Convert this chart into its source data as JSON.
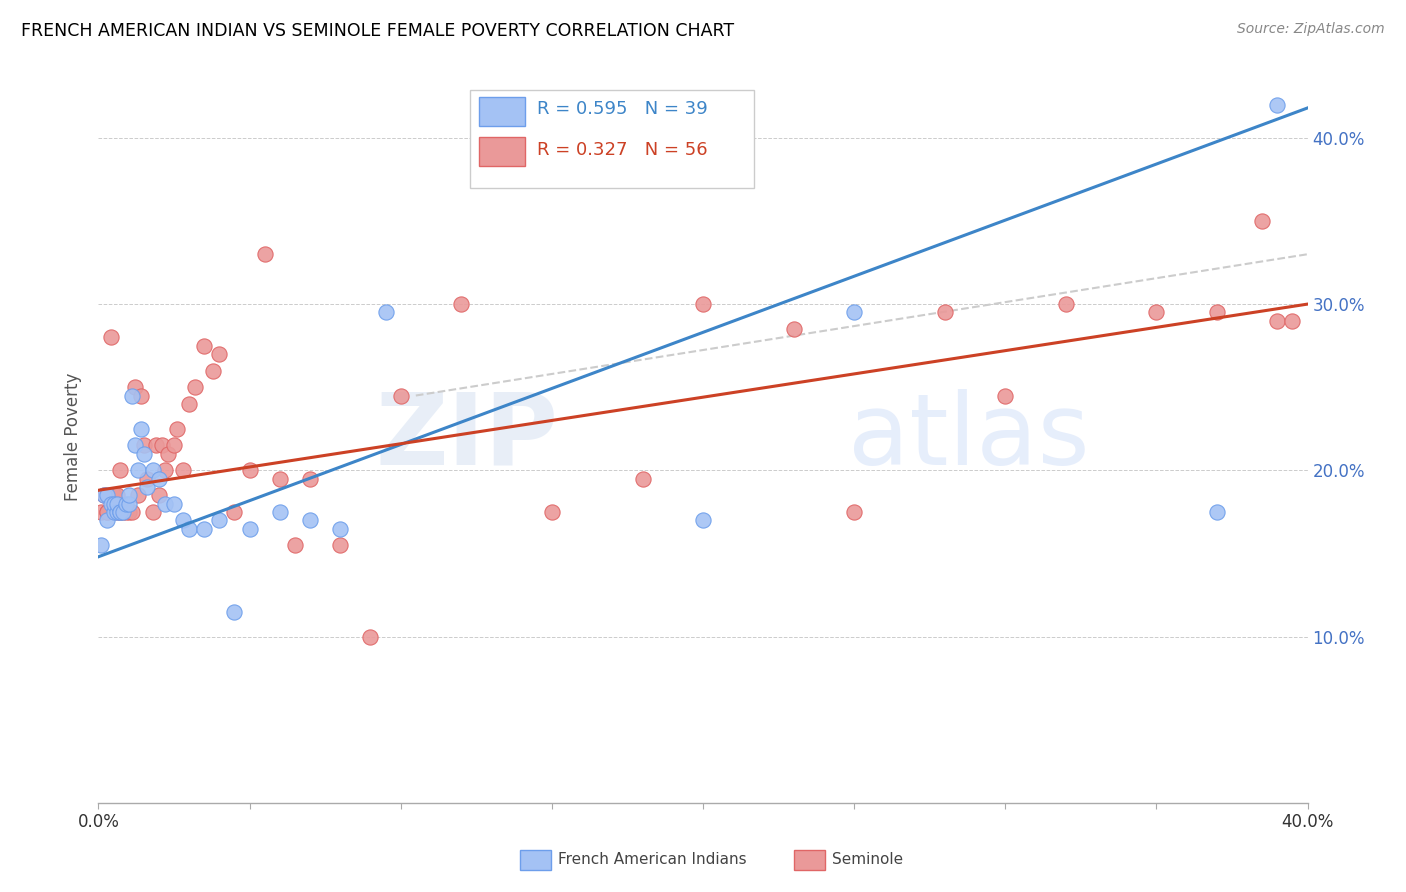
{
  "title": "FRENCH AMERICAN INDIAN VS SEMINOLE FEMALE POVERTY CORRELATION CHART",
  "source": "Source: ZipAtlas.com",
  "ylabel": "Female Poverty",
  "x_min": 0.0,
  "x_max": 0.4,
  "y_min": 0.0,
  "y_max": 0.44,
  "color_blue": "#a4c2f4",
  "color_blue_edge": "#6d9eeb",
  "color_pink": "#ea9999",
  "color_pink_edge": "#e06666",
  "color_line_blue": "#3d85c8",
  "color_line_pink": "#cc4125",
  "color_line_dashed": "#cccccc",
  "color_right_axis": "#4472c4",
  "color_grid": "#cccccc",
  "blue_points_x": [
    0.001,
    0.002,
    0.003,
    0.003,
    0.004,
    0.005,
    0.005,
    0.006,
    0.006,
    0.007,
    0.007,
    0.008,
    0.009,
    0.01,
    0.01,
    0.011,
    0.012,
    0.013,
    0.014,
    0.015,
    0.016,
    0.018,
    0.02,
    0.022,
    0.025,
    0.028,
    0.03,
    0.035,
    0.04,
    0.045,
    0.05,
    0.06,
    0.07,
    0.08,
    0.095,
    0.2,
    0.25,
    0.37,
    0.39
  ],
  "blue_points_y": [
    0.155,
    0.185,
    0.17,
    0.185,
    0.18,
    0.175,
    0.18,
    0.175,
    0.18,
    0.175,
    0.175,
    0.175,
    0.18,
    0.18,
    0.185,
    0.245,
    0.215,
    0.2,
    0.225,
    0.21,
    0.19,
    0.2,
    0.195,
    0.18,
    0.18,
    0.17,
    0.165,
    0.165,
    0.17,
    0.115,
    0.165,
    0.175,
    0.17,
    0.165,
    0.295,
    0.17,
    0.295,
    0.175,
    0.42
  ],
  "pink_points_x": [
    0.001,
    0.002,
    0.003,
    0.003,
    0.004,
    0.005,
    0.006,
    0.006,
    0.007,
    0.007,
    0.008,
    0.009,
    0.01,
    0.011,
    0.012,
    0.013,
    0.014,
    0.015,
    0.016,
    0.018,
    0.019,
    0.02,
    0.021,
    0.022,
    0.023,
    0.025,
    0.026,
    0.028,
    0.03,
    0.032,
    0.035,
    0.038,
    0.04,
    0.045,
    0.05,
    0.055,
    0.06,
    0.065,
    0.07,
    0.08,
    0.09,
    0.1,
    0.12,
    0.15,
    0.18,
    0.2,
    0.23,
    0.25,
    0.28,
    0.3,
    0.32,
    0.35,
    0.37,
    0.385,
    0.39,
    0.395
  ],
  "pink_points_y": [
    0.175,
    0.185,
    0.175,
    0.175,
    0.28,
    0.185,
    0.175,
    0.185,
    0.175,
    0.2,
    0.175,
    0.175,
    0.175,
    0.175,
    0.25,
    0.185,
    0.245,
    0.215,
    0.195,
    0.175,
    0.215,
    0.185,
    0.215,
    0.2,
    0.21,
    0.215,
    0.225,
    0.2,
    0.24,
    0.25,
    0.275,
    0.26,
    0.27,
    0.175,
    0.2,
    0.33,
    0.195,
    0.155,
    0.195,
    0.155,
    0.1,
    0.245,
    0.3,
    0.175,
    0.195,
    0.3,
    0.285,
    0.175,
    0.295,
    0.245,
    0.3,
    0.295,
    0.295,
    0.35,
    0.29,
    0.29
  ],
  "blue_line_x": [
    0.0,
    0.4
  ],
  "blue_line_y": [
    0.148,
    0.418
  ],
  "pink_line_x": [
    0.0,
    0.4
  ],
  "pink_line_y": [
    0.188,
    0.3
  ],
  "dashed_line_x": [
    0.105,
    0.4
  ],
  "dashed_line_y": [
    0.245,
    0.33
  ]
}
